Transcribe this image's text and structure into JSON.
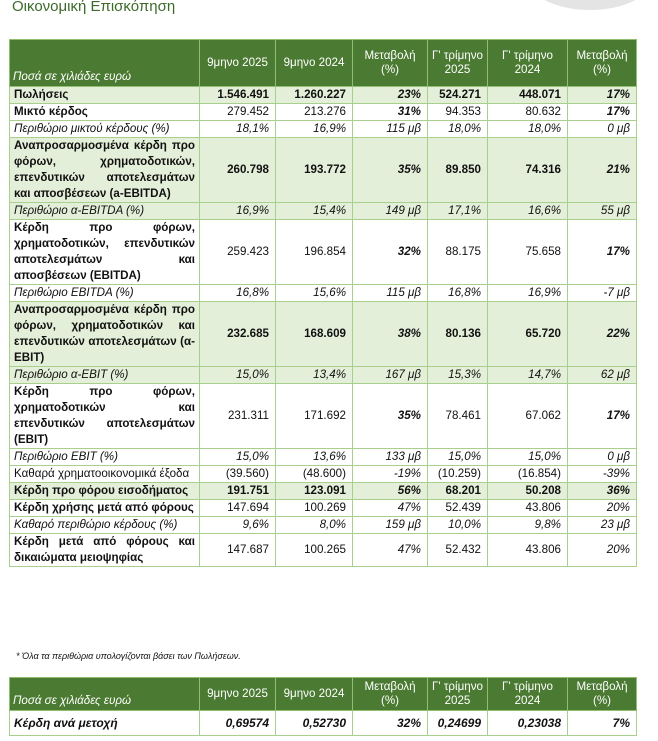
{
  "title": "Οικονομική Επισκόπηση",
  "colors": {
    "header_green": "#4b7a32",
    "row_shade": "#e4efd9",
    "border": "#a9cf8c"
  },
  "table1": {
    "headers": [
      "Ποσά σε χιλιάδες ευρώ",
      "9μηνο 2025",
      "9μηνο 2024",
      "Μεταβολή (%)",
      "Γ' τρίμηνο 2025",
      "Γ' τρίμηνο 2024",
      "Μεταβολή (%)"
    ],
    "rows": [
      {
        "label": "Πωλήσεις",
        "cells": [
          "1.546.491",
          "1.260.227",
          "23%",
          "524.271",
          "448.071",
          "17%"
        ],
        "style": "b vb cb shaded"
      },
      {
        "label": "Μικτό κέρδος",
        "cells": [
          "279.452",
          "213.276",
          "31%",
          "94.353",
          "80.632",
          "17%"
        ],
        "style": "b cb"
      },
      {
        "label": "Περιθώριο μικτού κέρδους (%)",
        "cells": [
          "18,1%",
          "16,9%",
          "115 μβ",
          "18,0%",
          "18,0%",
          "0 μβ"
        ],
        "style": "i"
      },
      {
        "label": "Αναπροσαρμοσμένα κέρδη προ φόρων, χρηματοδοτικών, επενδυτικών αποτελεσμάτων και αποσβέσεων (a-EBITDA)",
        "cells": [
          "260.798",
          "193.772",
          "35%",
          "89.850",
          "74.316",
          "21%"
        ],
        "style": "b vb cb shaded"
      },
      {
        "label": "Περιθώριο α-EBITDA (%)",
        "cells": [
          "16,9%",
          "15,4%",
          "149 μβ",
          "17,1%",
          "16,6%",
          "55 μβ"
        ],
        "style": "i shaded"
      },
      {
        "label": "Κέρδη προ φόρων, χρηματοδοτικών, επενδυτικών αποτελεσμάτων και αποσβέσεων (EBITDA)",
        "cells": [
          "259.423",
          "196.854",
          "32%",
          "88.175",
          "75.658",
          "17%"
        ],
        "style": "b cb"
      },
      {
        "label": "Περιθώριο EBITDA (%)",
        "cells": [
          "16,8%",
          "15,6%",
          "115 μβ",
          "16,8%",
          "16,9%",
          "-7 μβ"
        ],
        "style": "i"
      },
      {
        "label": "Αναπροσαρμοσμένα κέρδη προ φόρων, χρηματοδοτικών και επενδυτικών αποτελεσμάτων (α-EBIT)",
        "cells": [
          "232.685",
          "168.609",
          "38%",
          "80.136",
          "65.720",
          "22%"
        ],
        "style": "b vb cb shaded"
      },
      {
        "label": "Περιθώριο α-EBIT (%)",
        "cells": [
          "15,0%",
          "13,4%",
          "167 μβ",
          "15,3%",
          "14,7%",
          "62 μβ"
        ],
        "style": "i shaded"
      },
      {
        "label": "Κέρδη προ φόρων, χρηματοδοτικών και επενδυτικών αποτελεσμάτων (EBIT)",
        "cells": [
          "231.311",
          "171.692",
          "35%",
          "78.461",
          "67.062",
          "17%"
        ],
        "style": "b cb"
      },
      {
        "label": "Περιθώριο EBIT (%)",
        "cells": [
          "15,0%",
          "13,6%",
          "133 μβ",
          "15,0%",
          "15,0%",
          "0 μβ"
        ],
        "style": "i"
      },
      {
        "label": "Καθαρά χρηματοοικονομικά έξοδα",
        "cells": [
          "(39.560)",
          "(48.600)",
          "-19%",
          "(10.259)",
          "(16.854)",
          "-39%"
        ],
        "style": ""
      },
      {
        "label": "Κέρδη προ φόρου εισοδήματος",
        "cells": [
          "191.751",
          "123.091",
          "56%",
          "68.201",
          "50.208",
          "36%"
        ],
        "style": "b vb cb shaded"
      },
      {
        "label": "Κέρδη χρήσης μετά από φόρους",
        "cells": [
          "147.694",
          "100.269",
          "47%",
          "52.439",
          "43.806",
          "20%"
        ],
        "style": "b"
      },
      {
        "label": "Καθαρό περιθώριο κέρδους (%)",
        "cells": [
          "9,6%",
          "8,0%",
          "159 μβ",
          "10,0%",
          "9,8%",
          "23 μβ"
        ],
        "style": "i"
      },
      {
        "label": "Κέρδη μετά από φόρους και δικαιώματα μειοψηφίας",
        "cells": [
          "147.687",
          "100.265",
          "47%",
          "52.432",
          "43.806",
          "20%"
        ],
        "style": "b"
      }
    ]
  },
  "footnote": "* Όλα τα περιθώρια υπολογίζονται βάσει των Πωλήσεων.",
  "table2": {
    "headers": [
      "Ποσά σε χιλιάδες ευρώ",
      "9μηνο 2025",
      "9μηνο 2024",
      "Μεταβολή (%)",
      "Γ' τρίμηνο 2025",
      "Γ' τρίμηνο 2024",
      "Μεταβολή (%)"
    ],
    "rows": [
      {
        "label": "Κέρδη ανά μετοχή",
        "cells": [
          "0,69574",
          "0,52730",
          "32%",
          "0,24699",
          "0,23038",
          "7%"
        ]
      }
    ]
  }
}
